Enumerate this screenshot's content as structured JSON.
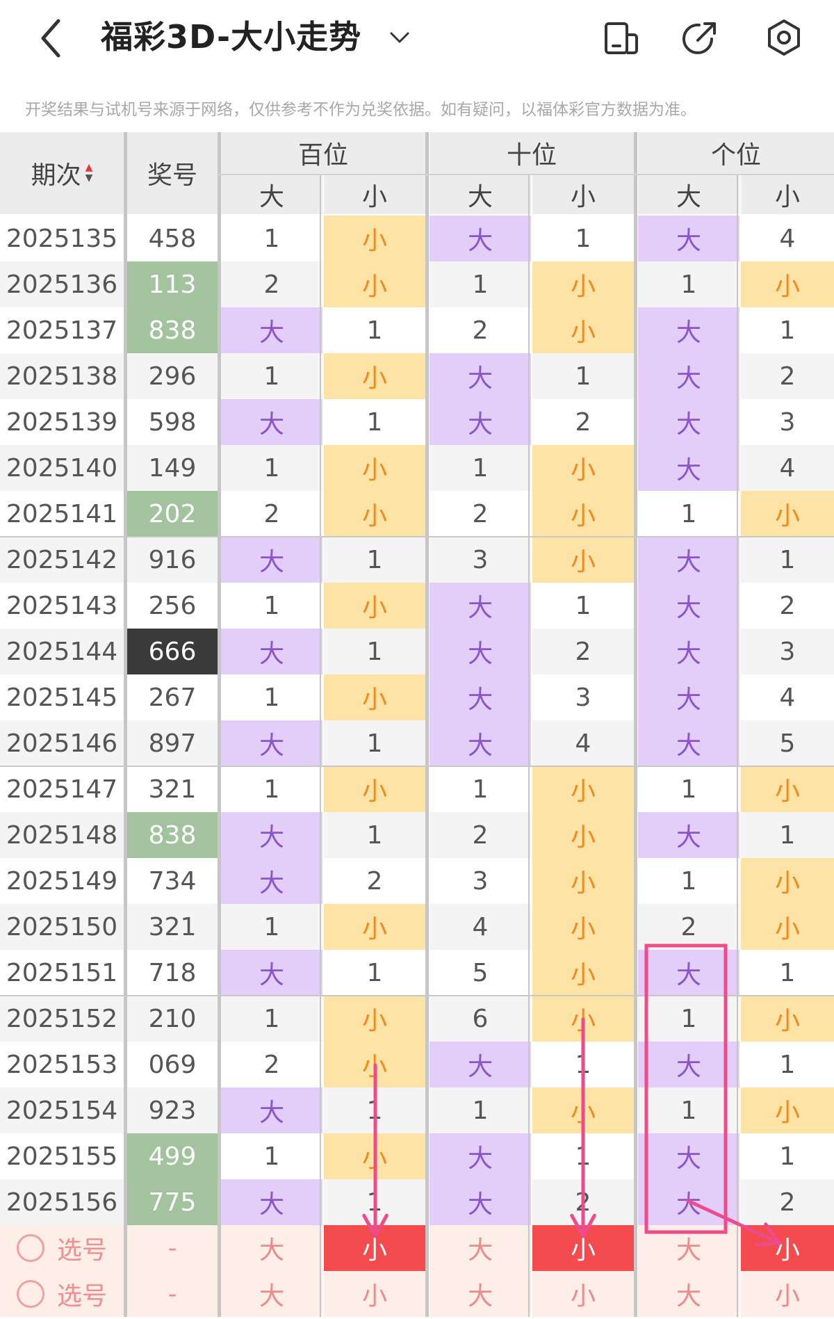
{
  "header": {
    "title": "福彩3D-大小走势",
    "back_icon": "chevron-left-icon",
    "dropdown_icon": "chevron-down-icon",
    "actions": [
      "phone-layout-icon",
      "share-icon",
      "settings-icon"
    ]
  },
  "disclaimer": "开奖结果与试机号来源于网络，仅供参考不作为兑奖依据。如有疑问，以福体彩官方数据为准。",
  "table": {
    "col_issue": "期次",
    "col_number": "奖号",
    "groups": [
      "百位",
      "十位",
      "个位"
    ],
    "sub_big": "大",
    "sub_small": "小",
    "rows": [
      {
        "issue": "2025135",
        "number": "458",
        "tag": "normal",
        "cells": [
          "1",
          "小",
          "大",
          "1",
          "大",
          "4"
        ]
      },
      {
        "issue": "2025136",
        "number": "113",
        "tag": "pair",
        "cells": [
          "2",
          "小",
          "1",
          "小",
          "1",
          "小"
        ]
      },
      {
        "issue": "2025137",
        "number": "838",
        "tag": "pair",
        "cells": [
          "大",
          "1",
          "2",
          "小",
          "大",
          "1"
        ]
      },
      {
        "issue": "2025138",
        "number": "296",
        "tag": "normal",
        "cells": [
          "1",
          "小",
          "大",
          "1",
          "大",
          "2"
        ]
      },
      {
        "issue": "2025139",
        "number": "598",
        "tag": "normal",
        "cells": [
          "大",
          "1",
          "大",
          "2",
          "大",
          "3"
        ]
      },
      {
        "issue": "2025140",
        "number": "149",
        "tag": "normal",
        "cells": [
          "1",
          "小",
          "1",
          "小",
          "大",
          "4"
        ]
      },
      {
        "issue": "2025141",
        "number": "202",
        "tag": "pair",
        "cells": [
          "2",
          "小",
          "2",
          "小",
          "1",
          "小"
        ]
      },
      {
        "issue": "2025142",
        "number": "916",
        "tag": "normal",
        "cells": [
          "大",
          "1",
          "3",
          "小",
          "大",
          "1"
        ]
      },
      {
        "issue": "2025143",
        "number": "256",
        "tag": "normal",
        "cells": [
          "1",
          "小",
          "大",
          "1",
          "大",
          "2"
        ]
      },
      {
        "issue": "2025144",
        "number": "666",
        "tag": "triple",
        "cells": [
          "大",
          "1",
          "大",
          "2",
          "大",
          "3"
        ]
      },
      {
        "issue": "2025145",
        "number": "267",
        "tag": "normal",
        "cells": [
          "1",
          "小",
          "大",
          "3",
          "大",
          "4"
        ]
      },
      {
        "issue": "2025146",
        "number": "897",
        "tag": "normal",
        "cells": [
          "大",
          "1",
          "大",
          "4",
          "大",
          "5"
        ]
      },
      {
        "issue": "2025147",
        "number": "321",
        "tag": "normal",
        "cells": [
          "1",
          "小",
          "1",
          "小",
          "1",
          "小"
        ]
      },
      {
        "issue": "2025148",
        "number": "838",
        "tag": "pair",
        "cells": [
          "大",
          "1",
          "2",
          "小",
          "大",
          "1"
        ]
      },
      {
        "issue": "2025149",
        "number": "734",
        "tag": "normal",
        "cells": [
          "大",
          "2",
          "3",
          "小",
          "1",
          "小"
        ]
      },
      {
        "issue": "2025150",
        "number": "321",
        "tag": "normal",
        "cells": [
          "1",
          "小",
          "4",
          "小",
          "2",
          "小"
        ]
      },
      {
        "issue": "2025151",
        "number": "718",
        "tag": "normal",
        "cells": [
          "大",
          "1",
          "5",
          "小",
          "大",
          "1"
        ]
      },
      {
        "issue": "2025152",
        "number": "210",
        "tag": "normal",
        "cells": [
          "1",
          "小",
          "6",
          "小",
          "1",
          "小"
        ]
      },
      {
        "issue": "2025153",
        "number": "069",
        "tag": "normal",
        "cells": [
          "2",
          "小",
          "大",
          "1",
          "大",
          "1"
        ]
      },
      {
        "issue": "2025154",
        "number": "923",
        "tag": "normal",
        "cells": [
          "大",
          "1",
          "1",
          "小",
          "1",
          "小"
        ]
      },
      {
        "issue": "2025155",
        "number": "499",
        "tag": "pair",
        "cells": [
          "1",
          "小",
          "大",
          "1",
          "大",
          "1"
        ]
      },
      {
        "issue": "2025156",
        "number": "775",
        "tag": "pair",
        "cells": [
          "大",
          "1",
          "大",
          "2",
          "大",
          "2"
        ]
      }
    ],
    "select_rows": [
      {
        "label": "选号",
        "number": "-",
        "cells": [
          "大",
          "小",
          "大",
          "小",
          "大",
          "小"
        ],
        "selected": [
          false,
          true,
          false,
          true,
          false,
          true
        ]
      },
      {
        "label": "选号",
        "number": "-",
        "cells": [
          "大",
          "小",
          "大",
          "小",
          "大",
          "小"
        ],
        "selected": [
          false,
          false,
          false,
          false,
          false,
          false
        ]
      }
    ]
  },
  "colors": {
    "big_bg": "#e3cdf9",
    "small_bg": "#fde3a5",
    "big_text": "#8a55cc",
    "small_text": "#f08a1c",
    "pair_bg": "#a3c39f",
    "triple_bg": "#3a3a3a",
    "select_bg": "#fdeee8",
    "select_active_bg": "#f44b4e",
    "annotation": "#ee4b8b"
  }
}
